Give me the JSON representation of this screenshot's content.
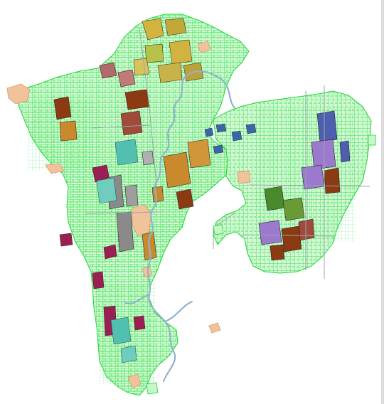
{
  "map": {
    "kind": "parcel-land-use-map",
    "labels": [],
    "colors": {
      "background": "#ffffff",
      "parcel_outline": "#00e61a",
      "parcel_fill": "#c6f7c9",
      "river": "#93b2cc",
      "road": "#9aa4ad",
      "park": "#f2c29b",
      "olive": "#b7c249",
      "mustard": "#d2b340",
      "orange": "#c88a2c",
      "brown": "#8b3a12",
      "maroon": "#9a1f55",
      "rose": "#b46a6a",
      "teal": "#52c0b0",
      "gray": "#8a8a8a",
      "blue": "#4e5fb0",
      "steel": "#3a68a6",
      "lavender": "#9c79cf",
      "forest": "#4b8a2a"
    },
    "legend": []
  }
}
